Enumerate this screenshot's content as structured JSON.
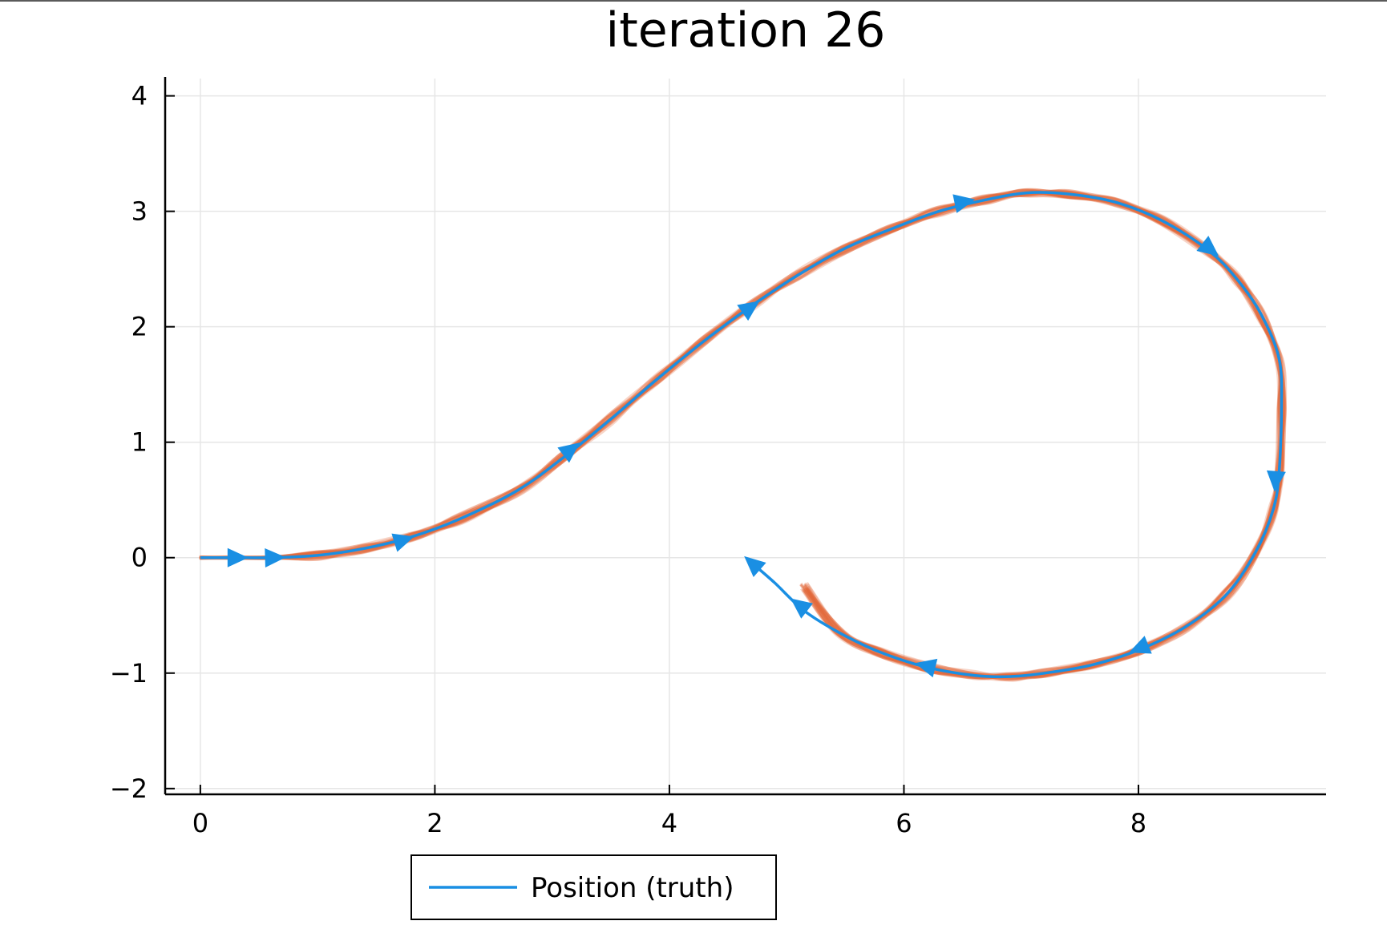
{
  "chart_data": {
    "type": "line",
    "title": "iteration 26",
    "xlabel": "",
    "ylabel": "",
    "xlim": [
      -0.3,
      9.6
    ],
    "ylim": [
      -2.05,
      4.15
    ],
    "xticks": [
      0,
      2,
      4,
      6,
      8
    ],
    "yticks": [
      -2,
      -1,
      0,
      1,
      2,
      3,
      4
    ],
    "xtick_labels": [
      "0",
      "2",
      "4",
      "6",
      "8"
    ],
    "ytick_labels": [
      "−2",
      "−1",
      "0",
      "1",
      "2",
      "3",
      "4"
    ],
    "grid": true,
    "legend_position": "bottom",
    "colors": {
      "truth": "#1a8fe3",
      "estimates": "#e2693b"
    },
    "series": [
      {
        "name": "Position (truth)",
        "color": "#1a8fe3",
        "x": [
          0.0,
          0.3,
          0.6,
          1.0,
          1.4,
          1.8,
          2.2,
          2.7,
          3.1,
          3.5,
          3.9,
          4.3,
          4.7,
          5.1,
          5.5,
          5.9,
          6.3,
          6.7,
          7.05,
          7.4,
          7.8,
          8.2,
          8.6,
          8.85,
          9.05,
          9.2,
          9.22,
          9.2,
          9.15,
          9.0,
          8.75,
          8.4,
          8.0,
          7.6,
          7.2,
          6.9,
          6.6,
          6.2,
          5.8,
          5.45,
          5.15,
          4.9,
          4.72
        ],
        "y": [
          0.0,
          0.0,
          0.0,
          0.02,
          0.08,
          0.18,
          0.33,
          0.58,
          0.87,
          1.2,
          1.55,
          1.88,
          2.18,
          2.45,
          2.68,
          2.85,
          3.0,
          3.1,
          3.16,
          3.15,
          3.08,
          2.92,
          2.66,
          2.4,
          2.1,
          1.72,
          1.3,
          0.75,
          0.42,
          0.05,
          -0.32,
          -0.6,
          -0.8,
          -0.93,
          -1.0,
          -1.03,
          -1.02,
          -0.95,
          -0.82,
          -0.65,
          -0.46,
          -0.22,
          -0.06
        ],
        "arrow_points": [
          [
            0.3,
            0.0
          ],
          [
            0.62,
            0.0
          ],
          [
            1.72,
            0.15
          ],
          [
            3.15,
            0.93
          ],
          [
            4.68,
            2.16
          ],
          [
            6.5,
            3.08
          ],
          [
            8.6,
            2.68
          ],
          [
            9.17,
            0.68
          ],
          [
            8.02,
            -0.78
          ],
          [
            6.2,
            -0.94
          ],
          [
            5.12,
            -0.42
          ],
          [
            4.72,
            -0.06
          ]
        ]
      }
    ],
    "ensemble_estimates": {
      "color": "#e2693b",
      "end_x": 5.15,
      "end_y": -0.25
    }
  }
}
